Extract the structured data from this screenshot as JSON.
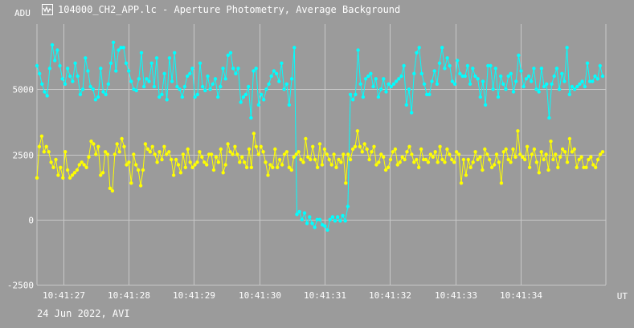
{
  "window": {
    "title": "104000_CH2_APP.lc - Aperture Photometry, Average Background",
    "icon": "light-curve-app-icon"
  },
  "footer": {
    "date_text": "24 Jun 2022, AVI"
  },
  "colors": {
    "background": "#9b9b9b",
    "grid": "#c8c8c8",
    "series1": "#00ffff",
    "series2": "#ffff00",
    "text": "#ffffff"
  },
  "chart_data": {
    "type": "line",
    "title": "",
    "xlabel": "UT",
    "ylabel": "ADU",
    "ylim": [
      -2500,
      7500
    ],
    "yticks": [
      -2500,
      0,
      2500,
      5000
    ],
    "ytick_labels": [
      "-2500",
      "0",
      "2500",
      "5000"
    ],
    "xticks": [
      "10:41:27",
      "10:41:28",
      "10:41:29",
      "10:41:30",
      "10:41:31",
      "10:41:32",
      "10:41:33",
      "10:41:34"
    ],
    "x_start": "10:41:26.6",
    "x_end": "10:41:35.3",
    "grid": true,
    "markers": true,
    "series": [
      {
        "values": [
          5900,
          5600,
          5200,
          4900,
          4750,
          5800,
          6700,
          6100,
          6500,
          5900,
          5400,
          5200,
          5800,
          5500,
          5300,
          6000,
          5500,
          4800,
          5000,
          6200,
          5700,
          5100,
          5000,
          4600,
          4700,
          5800,
          4900,
          4800,
          5200,
          6000,
          6800,
          5700,
          6500,
          6600,
          6600,
          6000,
          5700,
          5300,
          5000,
          4950,
          5400,
          6400,
          5100,
          5400,
          5300,
          6000,
          5100,
          6200,
          4700,
          4800,
          5600,
          4600,
          6200,
          5300,
          6400,
          5100,
          5000,
          4700,
          5100,
          5500,
          5600,
          5800,
          4700,
          4800,
          6000,
          5100,
          4950,
          5500,
          5000,
          5200,
          5400,
          4700,
          5100,
          5800,
          5400,
          6300,
          6400,
          5800,
          5600,
          5800,
          4500,
          4700,
          4800,
          5100,
          3900,
          5700,
          5800,
          4400,
          4800,
          4600,
          5000,
          5200,
          5500,
          5700,
          5600,
          5300,
          6000,
          5000,
          5200,
          4400,
          5400,
          6600,
          200,
          300,
          0,
          250,
          -150,
          100,
          -150,
          -300,
          0,
          0,
          -200,
          -250,
          -400,
          0,
          100,
          -50,
          100,
          -50,
          150,
          -50,
          500,
          4800,
          4600,
          4800,
          6500,
          5200,
          4700,
          5400,
          5500,
          5600,
          5100,
          5400,
          4700,
          5000,
          5400,
          4900,
          5200,
          5100,
          5200,
          5300,
          5400,
          5500,
          5900,
          4400,
          5000,
          4100,
          5600,
          6400,
          6600,
          5600,
          5200,
          4800,
          4800,
          5300,
          5700,
          5200,
          6000,
          6600,
          5800,
          6200,
          5900,
          5300,
          5200,
          6100,
          5600,
          5500,
          5500,
          5900,
          5200,
          5800,
          5500,
          5400,
          4700,
          5300,
          4400,
          5900,
          5900,
          5000,
          5800,
          4700,
          5500,
          5200,
          5000,
          5500,
          5600,
          4900,
          5300,
          6300,
          5700,
          5100,
          5400,
          5500,
          5300,
          5800,
          5000,
          4900,
          5800,
          5100,
          5200,
          3900,
          5200,
          5500,
          5800,
          5000,
          5600,
          5300,
          6600,
          4800,
          5100,
          5000,
          5100,
          5200,
          5300,
          5100,
          6000,
          5300,
          5300,
          5500,
          5400,
          5900,
          5500
        ],
        "color": "#00ffff"
      },
      {
        "values": [
          1600,
          2800,
          3200,
          2600,
          2800,
          2600,
          2200,
          2000,
          2300,
          1700,
          2000,
          1600,
          2600,
          1900,
          1600,
          1700,
          1800,
          1900,
          2100,
          2200,
          2100,
          2000,
          2400,
          3000,
          2900,
          2500,
          2800,
          1700,
          1800,
          2600,
          2500,
          1200,
          1100,
          2500,
          2900,
          2600,
          3100,
          2800,
          2100,
          2200,
          1400,
          2500,
          2100,
          1900,
          1300,
          1900,
          2900,
          2700,
          2600,
          2800,
          2500,
          2200,
          2600,
          2300,
          2800,
          2500,
          2600,
          2300,
          1700,
          2300,
          2100,
          1800,
          2500,
          2000,
          2700,
          2200,
          2000,
          2100,
          2200,
          2600,
          2400,
          2200,
          2100,
          2500,
          2500,
          1900,
          2400,
          2200,
          2700,
          1800,
          2100,
          2900,
          2600,
          2500,
          2800,
          2500,
          2200,
          2400,
          2200,
          2000,
          2700,
          2000,
          3300,
          2800,
          2500,
          2800,
          2600,
          2200,
          1700,
          2100,
          2000,
          2700,
          2000,
          2300,
          2100,
          2500,
          2600,
          2000,
          1900,
          2400,
          2500,
          2600,
          2300,
          2200,
          3100,
          2400,
          2300,
          2800,
          2300,
          2000,
          2900,
          2100,
          2700,
          2500,
          2300,
          2100,
          2500,
          2000,
          2300,
          2200,
          2500,
          1400,
          2500,
          2300,
          2700,
          2800,
          3400,
          2800,
          2600,
          2900,
          2700,
          2300,
          2600,
          2800,
          2100,
          2200,
          2500,
          2400,
          1900,
          2000,
          2300,
          2600,
          2700,
          2100,
          2200,
          2400,
          2300,
          2600,
          2800,
          2500,
          2200,
          2300,
          2000,
          2700,
          2300,
          2300,
          2200,
          2500,
          2400,
          2600,
          2200,
          2800,
          2300,
          2200,
          2700,
          2500,
          2300,
          2200,
          2600,
          2500,
          1400,
          2300,
          1700,
          2300,
          2000,
          2200,
          2600,
          2300,
          2400,
          1900,
          2700,
          2500,
          2300,
          2000,
          2100,
          2500,
          2200,
          1400,
          2600,
          2700,
          2300,
          2200,
          2700,
          2400,
          3400,
          2500,
          2400,
          2300,
          2800,
          2000,
          2500,
          2700,
          2200,
          1800,
          2600,
          2300,
          2500,
          1900,
          3000,
          2300,
          2500,
          2000,
          2400,
          2700,
          2600,
          2200,
          3100,
          2600,
          2700,
          2000,
          2300,
          2400,
          2000,
          2000,
          2300,
          2400,
          2100,
          2000,
          2300,
          2500,
          2600
        ],
        "color": "#ffff00"
      }
    ]
  }
}
